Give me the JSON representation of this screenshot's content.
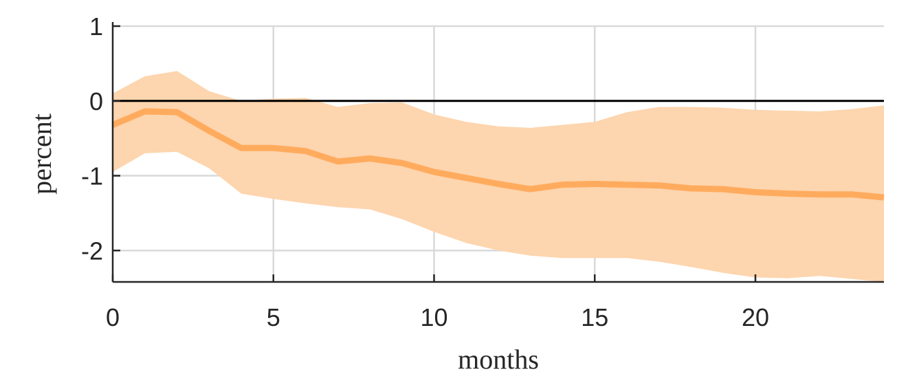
{
  "chart_data": {
    "type": "line",
    "title": "",
    "xlabel": "months",
    "ylabel": "percent",
    "xlim": [
      0,
      24
    ],
    "ylim": [
      -2.42,
      1.0
    ],
    "xticks": [
      0,
      5,
      10,
      15,
      20
    ],
    "xtick_labels": [
      "0",
      "5",
      "10",
      "15",
      "20"
    ],
    "yticks": [
      1,
      0,
      -1,
      -2
    ],
    "ytick_labels": [
      "1",
      "0",
      "-1",
      "-2"
    ],
    "grid": true,
    "reference_line": 0,
    "colors": {
      "line": "#ffab5e",
      "band": "#fdd5ae",
      "reference": "#000000"
    },
    "x": [
      0,
      1,
      2,
      3,
      4,
      5,
      6,
      7,
      8,
      9,
      10,
      11,
      12,
      13,
      14,
      15,
      16,
      17,
      18,
      19,
      20,
      21,
      22,
      23,
      24
    ],
    "series": [
      {
        "values": [
          -0.32,
          -0.14,
          -0.15,
          -0.4,
          -0.63,
          -0.63,
          -0.67,
          -0.81,
          -0.77,
          -0.83,
          -0.95,
          -1.03,
          -1.11,
          -1.18,
          -1.12,
          -1.11,
          -1.12,
          -1.13,
          -1.17,
          -1.18,
          -1.22,
          -1.24,
          -1.25,
          -1.25,
          -1.29
        ],
        "lower": [
          -0.95,
          -0.7,
          -0.68,
          -0.9,
          -1.24,
          -1.31,
          -1.37,
          -1.42,
          -1.45,
          -1.58,
          -1.75,
          -1.9,
          -2.0,
          -2.07,
          -2.1,
          -2.1,
          -2.1,
          -2.15,
          -2.22,
          -2.3,
          -2.36,
          -2.37,
          -2.34,
          -2.38,
          -2.42
        ],
        "upper": [
          0.1,
          0.33,
          0.4,
          0.13,
          0.0,
          0.03,
          0.04,
          -0.08,
          -0.03,
          -0.02,
          -0.18,
          -0.28,
          -0.34,
          -0.36,
          -0.32,
          -0.28,
          -0.15,
          -0.08,
          -0.08,
          -0.09,
          -0.12,
          -0.13,
          -0.14,
          -0.11,
          -0.06
        ]
      }
    ]
  }
}
